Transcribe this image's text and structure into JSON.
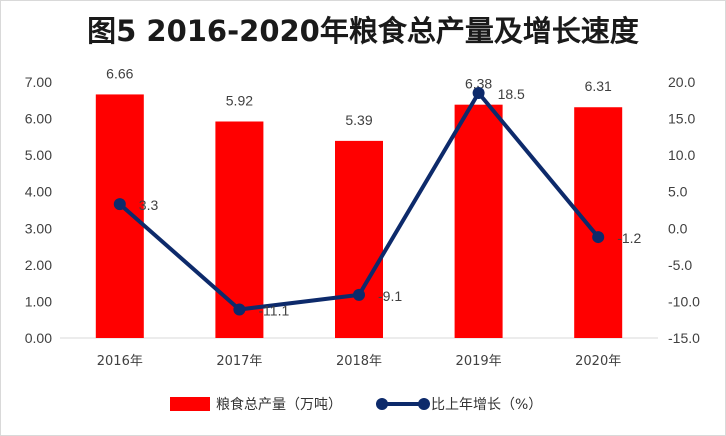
{
  "chart_data": {
    "type": "bar+line",
    "title": "图5  2016-2020年粮食总产量及增长速度",
    "categories": [
      "2016年",
      "2017年",
      "2018年",
      "2019年",
      "2020年"
    ],
    "series": [
      {
        "name": "粮食总产量（万吨）",
        "type": "bar",
        "axis": "left",
        "values": [
          6.66,
          5.92,
          5.39,
          6.38,
          6.31
        ],
        "labels": [
          "6.66",
          "5.92",
          "5.39",
          "6.38",
          "6.31"
        ],
        "color": "#ff0000"
      },
      {
        "name": "比上年增长（%）",
        "type": "line",
        "axis": "right",
        "values": [
          3.3,
          -11.1,
          -9.1,
          18.5,
          -1.2
        ],
        "labels": [
          "3.3",
          "-11.1",
          "-9.1",
          "18.5",
          "-1.2"
        ],
        "color": "#0d2a6b"
      }
    ],
    "y_left": {
      "min": 0,
      "max": 7,
      "step": 1,
      "ticks": [
        "0.00",
        "1.00",
        "2.00",
        "3.00",
        "4.00",
        "5.00",
        "6.00",
        "7.00"
      ]
    },
    "y_right": {
      "min": -15,
      "max": 20,
      "step": 5,
      "ticks": [
        "-15.0",
        "-10.0",
        "-5.0",
        "0.0",
        "5.0",
        "10.0",
        "15.0",
        "20.0"
      ]
    },
    "grid": false,
    "legend": "bottom"
  }
}
